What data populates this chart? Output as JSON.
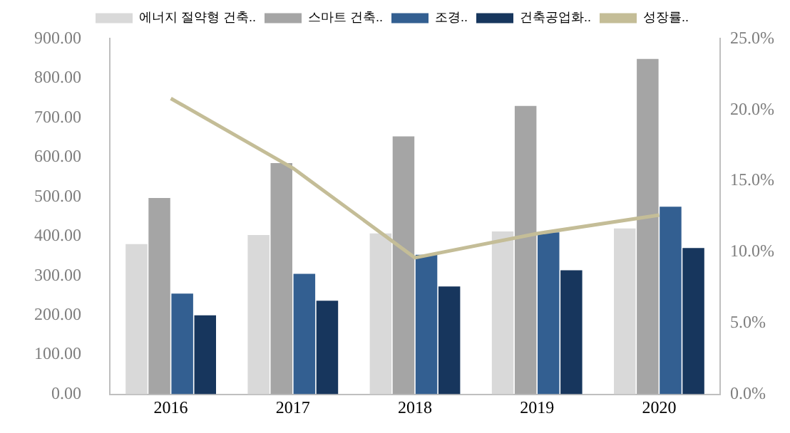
{
  "chart_data": {
    "type": "bar",
    "categories": [
      "2016",
      "2017",
      "2018",
      "2019",
      "2020"
    ],
    "series": [
      {
        "name": "에너지 절약형 건축..",
        "color": "#d9d9d9",
        "values": [
          380,
          403,
          407,
          412,
          420
        ]
      },
      {
        "name": "스마트 건축..",
        "color": "#a5a5a5",
        "values": [
          497,
          585,
          653,
          730,
          849
        ]
      },
      {
        "name": "조경..",
        "color": "#335f91",
        "values": [
          255,
          305,
          353,
          410,
          475
        ]
      },
      {
        "name": "건축공업화..",
        "color": "#17365d",
        "values": [
          200,
          237,
          273,
          314,
          370
        ]
      },
      {
        "name": "성장률..",
        "type": "line",
        "axis": "y2",
        "color": "#c4bd97",
        "values": [
          20.8,
          15.9,
          9.6,
          11.3,
          12.6
        ]
      }
    ],
    "ylim": [
      0,
      900
    ],
    "yticks": [
      {
        "value": 0,
        "label": "0.00"
      },
      {
        "value": 100,
        "label": "100.00"
      },
      {
        "value": 200,
        "label": "200.00"
      },
      {
        "value": 300,
        "label": "300.00"
      },
      {
        "value": 400,
        "label": "400.00"
      },
      {
        "value": 500,
        "label": "500.00"
      },
      {
        "value": 600,
        "label": "600.00"
      },
      {
        "value": 700,
        "label": "700.00"
      },
      {
        "value": 800,
        "label": "800.00"
      },
      {
        "value": 900,
        "label": "900.00"
      }
    ],
    "y2lim": [
      0,
      25
    ],
    "y2ticks": [
      {
        "value": 0,
        "label": "0.0%"
      },
      {
        "value": 5,
        "label": "5.0%"
      },
      {
        "value": 10,
        "label": "10.0%"
      },
      {
        "value": 15,
        "label": "15.0%"
      },
      {
        "value": 20,
        "label": "20.0%"
      },
      {
        "value": 25,
        "label": "25.0%"
      }
    ],
    "grid": false,
    "legend": "top",
    "marker": "none"
  }
}
